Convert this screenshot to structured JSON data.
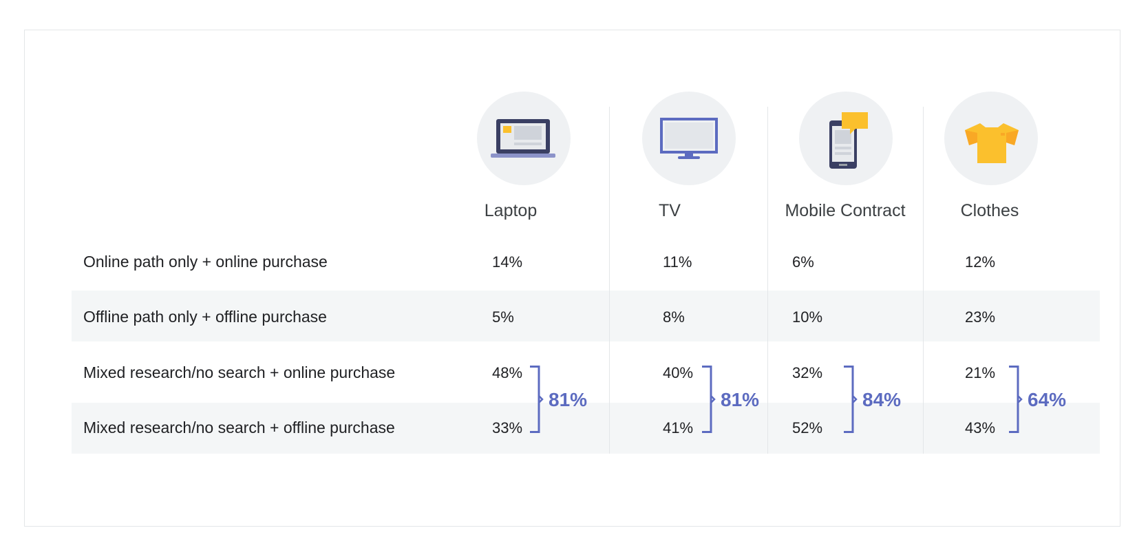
{
  "chart_data": {
    "type": "table",
    "columns": [
      "Laptop",
      "TV",
      "Mobile Contract",
      "Clothes"
    ],
    "rows": [
      {
        "label": "Online path only + online purchase",
        "values": [
          "14%",
          "11%",
          "6%",
          "12%"
        ]
      },
      {
        "label": "Offline path only + offline purchase",
        "values": [
          "5%",
          "8%",
          "10%",
          "23%"
        ]
      },
      {
        "label": "Mixed research/no search + online purchase",
        "values": [
          "48%",
          "40%",
          "32%",
          "21%"
        ]
      },
      {
        "label": "Mixed research/no search + offline purchase",
        "values": [
          "33%",
          "41%",
          "52%",
          "43%"
        ]
      }
    ],
    "bracket_totals": [
      "81%",
      "81%",
      "84%",
      "64%"
    ]
  },
  "icons": [
    "laptop-icon",
    "tv-icon",
    "mobile-phone-icon",
    "t-shirt-icon"
  ],
  "colors": {
    "accent": "#5c6bc0",
    "icon_navy": "#3a3f63",
    "icon_yellow": "#fbc02d",
    "icon_orange": "#f9a825",
    "band": "#f4f6f7",
    "circle": "#eff1f3"
  }
}
